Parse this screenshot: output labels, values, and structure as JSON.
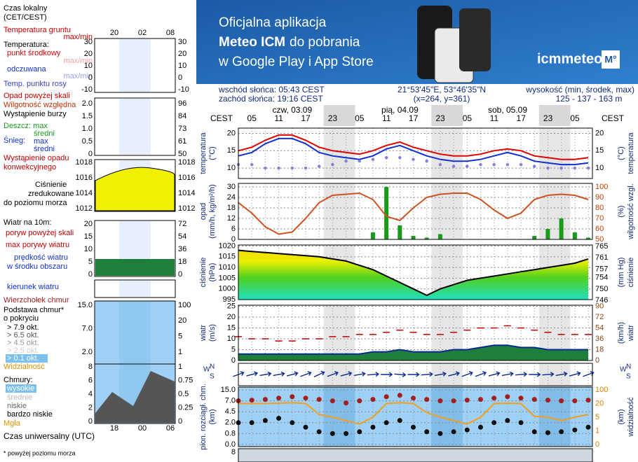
{
  "banner": {
    "line1": "Oficjalna aplikacja",
    "line2_bold": "Meteo ICM",
    "line2_rest": "do pobrania",
    "line3": "w Google Play i App Store",
    "logo": "icmmeteo",
    "badge": "M°"
  },
  "info": {
    "sunrise": "wschód słońca: 05:43 CEST",
    "sunset": "zachód słońca: 19:16 CEST",
    "coords": "21°53'45\"E, 53°46'35\"N",
    "grid": "(x=264,  y=361)",
    "elev_title": "wysokość (min, środek, max)",
    "elev": "125 - 137 - 163 m"
  },
  "time_axis": {
    "zone": "CEST",
    "days": [
      "czw, 03.09",
      "pią, 04.09",
      "sob, 05.09"
    ],
    "hours": [
      "05",
      "11",
      "17",
      "23",
      "05",
      "11",
      "17",
      "23",
      "05",
      "11",
      "17",
      "23",
      "05"
    ]
  },
  "legend": {
    "local_time": [
      "Czas lokalny",
      "(CET/CEST)"
    ],
    "top_hours": [
      "20",
      "02",
      "08"
    ],
    "ground_temp": "Temperatura gruntu",
    "maxmin": "max/min",
    "temp_heading": "Temperatura:",
    "precip_over": "Opad powyżej skali",
    "storm": "Wystąpienie burzy",
    "mid": "średni",
    "snow": "Śnieg:",
    "max": "max",
    "convective": [
      "Wystąpienie opadu",
      "konwekcyjnego"
    ],
    "pressure": [
      "zredukowane",
      "do poziomu morza"
    ],
    "wind_heading": "Wiatr na 10m:",
    "gust_over": "poryw powyżej skali",
    "wind_mid": "w środku obszaru",
    "cloud_cover": "o pokryciu",
    "okt": [
      "> 7.9 okt.",
      "> 6.5 okt.",
      "> 4.5 okt.",
      "> 2.5 okt.",
      "> 0.1 okt."
    ],
    "clouds_heading": "Chmury:",
    "cloud_levels": [
      "wysokie",
      "średnie",
      "niskie",
      "bardzo niskie"
    ],
    "fog": "Mgła",
    "bottom_hours": [
      "18",
      "00",
      "06"
    ],
    "utc": "Czas uniwersalny (UTC)",
    "footnote": "* powyżej poziomu morza",
    "panels": [
      {
        "left": [
          "30",
          "20",
          "10",
          "0",
          "-10"
        ],
        "right": [
          "30",
          "20",
          "10",
          "0",
          "-10"
        ]
      },
      {
        "left": [
          "2.0",
          "1.5",
          "1.0",
          "0.5",
          "0"
        ],
        "right": [
          "96",
          "84",
          "73",
          "61",
          "50"
        ]
      },
      {
        "left": [
          "1018",
          "1016",
          "1014",
          "1012"
        ],
        "right": [
          "1018",
          "1016",
          "1014",
          "1012"
        ]
      },
      {
        "left": [
          "20",
          "15",
          "10",
          "5",
          "0"
        ],
        "right": [
          "72",
          "54",
          "36",
          "18",
          "0"
        ]
      },
      {
        "left": [],
        "right": []
      },
      {
        "left": [
          "15.0",
          "7.0",
          "2.0"
        ],
        "right": [
          "100",
          "20",
          "5",
          "1"
        ]
      },
      {
        "left": [
          "8",
          "6",
          "4",
          "2",
          "0"
        ],
        "right": [
          "1",
          "0.75",
          "0.5",
          "0.25",
          "0"
        ]
      }
    ]
  },
  "bottom_panel_ticks": [
    8
  ],
  "chart_data": [
    {
      "type": "line",
      "ylabel": [
        "temperatura",
        "(°C)"
      ],
      "y2label": [
        "(°C)",
        "temperatura"
      ],
      "ylim": [
        7,
        21.5
      ],
      "yticks": [
        20,
        15,
        10
      ],
      "y2lim": [
        7,
        21.5
      ],
      "y2ticks": [
        20,
        15,
        10
      ],
      "grid": true,
      "series": [
        {
          "name": "punkt środkowy",
          "color": "#e00000",
          "mark": "line",
          "values": [
            15,
            16,
            18,
            19.5,
            19.5,
            18,
            16,
            15,
            14.5,
            14,
            15,
            16.5,
            17.5,
            16,
            15,
            14,
            13.5,
            13.5,
            14,
            15,
            15.5,
            15,
            13.5,
            13,
            12.5,
            12.5,
            13
          ]
        },
        {
          "name": "odczuwana",
          "color": "#1030d0",
          "mark": "line",
          "values": [
            13.5,
            14.5,
            17,
            18.5,
            18.5,
            17,
            14.5,
            13.5,
            13,
            12.5,
            13.5,
            15.5,
            16.5,
            15,
            13.5,
            12.5,
            12,
            12,
            12.5,
            13.5,
            14.5,
            13.5,
            12,
            11.5,
            11,
            11,
            11.5
          ]
        },
        {
          "name": "Temp. punktu rosy",
          "color": "#8080e0",
          "mark": "dots",
          "values": [
            11,
            11,
            10,
            10,
            10,
            10,
            10.5,
            11,
            12,
            12,
            12.5,
            13,
            13,
            12.5,
            12,
            11,
            10.5,
            10.5,
            11,
            11,
            11,
            11,
            10.5,
            10,
            10,
            10,
            10
          ]
        }
      ]
    },
    {
      "type": "line",
      "ylabel": [
        "opad",
        "(mm/h, kg/m²/h)"
      ],
      "y2label": [
        "(%)",
        "wilgotność wzgl."
      ],
      "ylim": [
        0,
        31.2
      ],
      "yticks": [
        30,
        24,
        18,
        12,
        6,
        0
      ],
      "y2lim": [
        50,
        102
      ],
      "y2ticks": [
        100,
        90,
        80,
        70,
        60,
        50
      ],
      "grid": true,
      "series": [
        {
          "name": "Deszcz: max",
          "color": "#1a9a1a",
          "mark": "bar",
          "values": [
            0,
            0,
            0,
            0,
            0,
            0,
            0,
            0,
            0,
            0,
            4,
            30,
            8,
            2,
            1,
            3,
            0,
            0,
            0,
            0,
            0,
            0,
            2,
            6,
            12,
            4,
            1
          ]
        },
        {
          "name": "Wilgotność względna",
          "color": "#d05020",
          "mark": "line",
          "axis": "y2",
          "values": [
            85,
            75,
            62,
            55,
            57,
            70,
            85,
            92,
            93,
            94,
            88,
            72,
            68,
            80,
            90,
            93,
            94,
            94,
            88,
            78,
            70,
            75,
            88,
            92,
            93,
            92,
            88
          ]
        }
      ]
    },
    {
      "type": "line",
      "ylabel": [
        "ciśnienie",
        "(hPa)"
      ],
      "y2label": [
        "(mm Hg)",
        "ciśnienie"
      ],
      "ylim": [
        995,
        1020.5
      ],
      "yticks": [
        1020,
        1015,
        1010,
        1005,
        1000,
        995
      ],
      "y2lim": [
        746.3,
        765.5
      ],
      "y2ticks": [
        765,
        761,
        757,
        754,
        750,
        746
      ],
      "grid": true,
      "series": [
        {
          "name": "Ciśnienie",
          "color": "#000000",
          "mark": "area",
          "values": [
            1018,
            1017.5,
            1017,
            1016.5,
            1016,
            1015.5,
            1015,
            1014,
            1013,
            1011,
            1009,
            1006,
            1003,
            1000,
            997,
            1000,
            1002,
            1004,
            1005,
            1006,
            1007,
            1008,
            1009,
            1010,
            1011,
            1012,
            1014
          ]
        }
      ]
    },
    {
      "type": "line",
      "ylabel": [
        "wiatr",
        "(m/s)"
      ],
      "y2label": [
        "(km/h)",
        "wiatr"
      ],
      "ylim": [
        0,
        25.5
      ],
      "yticks": [
        25,
        20,
        15,
        10,
        5,
        0
      ],
      "y2lim": [
        0,
        91.8
      ],
      "y2ticks": [
        90,
        72,
        54,
        36,
        18,
        0
      ],
      "grid": true,
      "series": [
        {
          "name": "prędkość wiatru",
          "color": "#0a2a90",
          "mark": "area",
          "values": [
            3,
            3,
            3,
            3,
            3,
            3,
            3,
            3,
            3,
            3,
            4,
            4,
            5,
            4,
            4,
            4,
            5,
            5,
            6,
            7,
            7,
            6,
            6,
            5,
            5,
            5,
            5
          ]
        },
        {
          "name": "max porywy wiatru",
          "color": "#c00000",
          "mark": "dash",
          "values": [
            11,
            10,
            10,
            9,
            9,
            10,
            10,
            11,
            11,
            12,
            12,
            13,
            14,
            13,
            12,
            12,
            13,
            14,
            15,
            15,
            16,
            15,
            14,
            13,
            12,
            12,
            12
          ]
        }
      ]
    },
    {
      "type": "arrows",
      "compass": [
        "W",
        "N",
        "S"
      ],
      "series": [
        {
          "name": "kierunek wiatru",
          "color": "#0a2a90",
          "mark": "arrow",
          "values": [
            250,
            255,
            260,
            260,
            255,
            250,
            245,
            250,
            255,
            260,
            265,
            270,
            275,
            270,
            265,
            260,
            255,
            250,
            250,
            255,
            260,
            265,
            270,
            265,
            260,
            255,
            250
          ]
        }
      ]
    },
    {
      "type": "line",
      "ylabel": [
        "pion. rozciągł. chm.",
        "(km)"
      ],
      "y2label": [
        "(km)",
        "widzialność"
      ],
      "yscale": "piecewise",
      "y2scale": "piecewise",
      "ylim": [
        0,
        15
      ],
      "yticks": [
        {
          "value": 15,
          "label": "15.0"
        },
        {
          "value": 7,
          "label": "7.0"
        },
        {
          "value": 4.5,
          "label": "4.5"
        },
        {
          "value": 2,
          "label": "2.0"
        },
        {
          "value": 0.8,
          "label": "0.8"
        },
        {
          "value": 0,
          "label": "0.0"
        }
      ],
      "y2lim": [
        0,
        100
      ],
      "y2ticks": [
        100,
        20,
        5,
        1,
        0
      ],
      "grid": true,
      "series": [
        {
          "name": "Wierzchołek chmur",
          "color": "#a02020",
          "mark": "dots",
          "values": [
            7,
            7.5,
            8,
            9,
            10,
            9,
            8,
            7,
            6.5,
            7,
            8,
            10,
            11,
            9,
            8,
            7,
            7,
            7.5,
            8,
            9,
            10,
            9,
            8,
            7.5,
            7,
            7,
            7.5
          ]
        },
        {
          "name": "Podstawa chmur*",
          "color": "#101010",
          "mark": "dots",
          "values": [
            2,
            2,
            2.5,
            3,
            2,
            1.5,
            1,
            0.8,
            0.8,
            1,
            1.5,
            2,
            2.5,
            1.5,
            1,
            0.8,
            1,
            1.2,
            1.5,
            2,
            2.5,
            2,
            1,
            0.9,
            1,
            1.2,
            1.5
          ]
        },
        {
          "name": "Widzialność",
          "color": "#f0a020",
          "mark": "line",
          "axis": "y2",
          "values": [
            20,
            20,
            20,
            22,
            25,
            20,
            8,
            5,
            4,
            3,
            5,
            20,
            25,
            20,
            10,
            5,
            4,
            3,
            5,
            20,
            22,
            20,
            6,
            5,
            4,
            5,
            8
          ]
        }
      ]
    }
  ]
}
